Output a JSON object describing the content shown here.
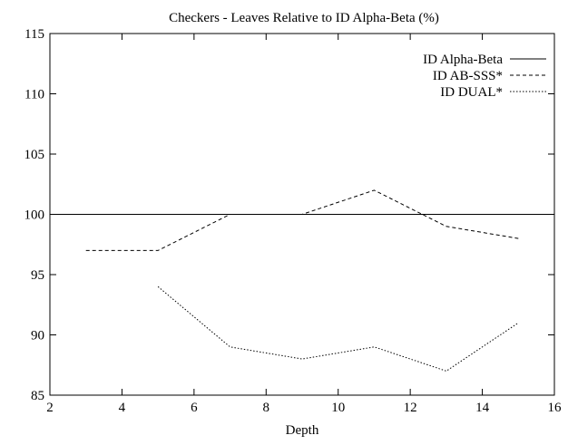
{
  "chart_data": {
    "type": "line",
    "title": "Checkers - Leaves Relative to ID Alpha-Beta (%)",
    "xlabel": "Depth",
    "ylabel": "",
    "xlim": [
      2,
      16
    ],
    "ylim": [
      85,
      115
    ],
    "xticks": [
      2,
      4,
      6,
      8,
      10,
      12,
      14,
      16
    ],
    "yticks": [
      85,
      90,
      95,
      100,
      105,
      110,
      115
    ],
    "grid": false,
    "legend_position": "top-right",
    "series": [
      {
        "name": "ID Alpha-Beta",
        "style": "solid",
        "x": [
          2,
          16
        ],
        "values": [
          100,
          100
        ]
      },
      {
        "name": "ID AB-SSS*",
        "style": "dashed",
        "x": [
          3,
          5,
          7,
          9,
          11,
          13,
          15
        ],
        "values": [
          97,
          97,
          100,
          100,
          102,
          99,
          98
        ]
      },
      {
        "name": "ID DUAL*",
        "style": "dotted",
        "x": [
          5,
          7,
          9,
          11,
          13,
          15
        ],
        "values": [
          94,
          89,
          88,
          89,
          87,
          91
        ]
      }
    ]
  }
}
